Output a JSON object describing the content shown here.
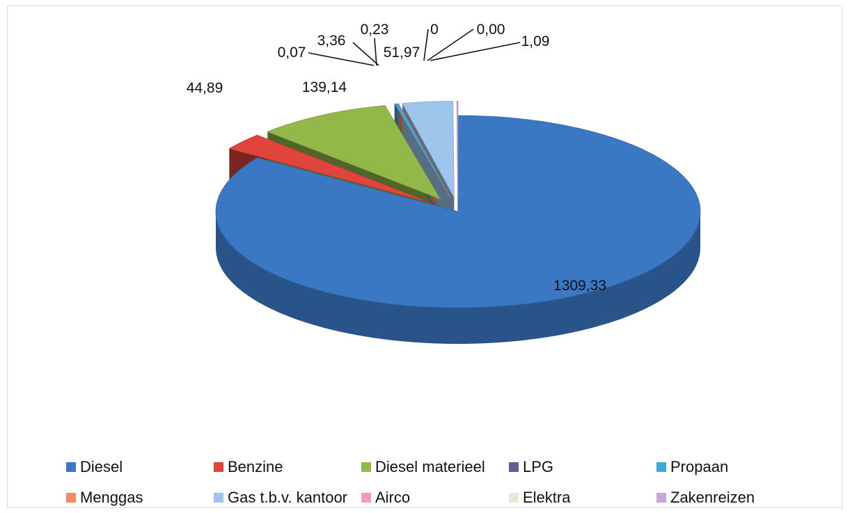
{
  "chart_data": {
    "type": "pie",
    "style": "3d-exploded",
    "title": "",
    "categories": [
      "Diesel",
      "Benzine",
      "Diesel materieel",
      "LPG",
      "Propaan",
      "Menggas",
      "Gas t.b.v. kantoor",
      "Airco",
      "Elektra",
      "Zakenreizen"
    ],
    "values": [
      1309.33,
      44.89,
      139.14,
      0.07,
      3.36,
      0.23,
      51.97,
      0,
      0.0,
      1.09
    ],
    "data_labels": [
      "1309,33",
      "44,89",
      "139,14",
      "0,07",
      "3,36",
      "0,23",
      "51,97",
      "0",
      "0,00",
      "1,09"
    ],
    "colors": [
      "#3a78c4",
      "#e0443c",
      "#93b84a",
      "#6c5a93",
      "#3ba9dd",
      "#f58c62",
      "#9ec6ec",
      "#f49ac1",
      "#e3ebd8",
      "#c9a4d6"
    ],
    "legend": {
      "position": "bottom"
    }
  }
}
